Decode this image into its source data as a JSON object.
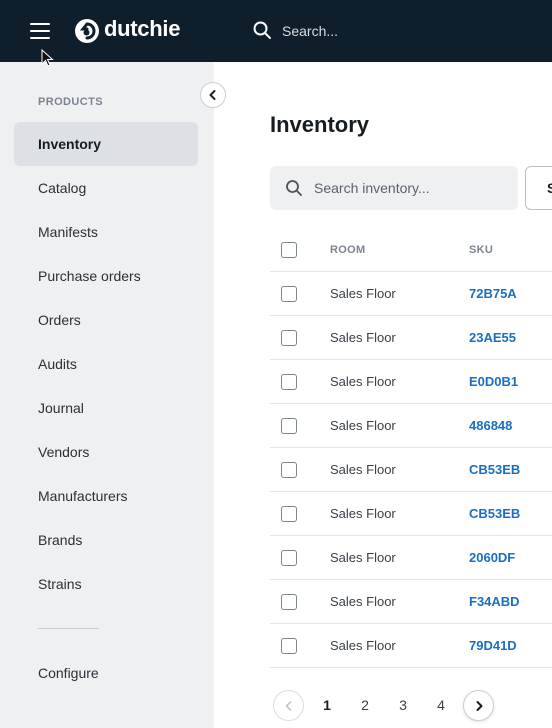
{
  "header": {
    "brand": "dutchie",
    "search_placeholder": "Search..."
  },
  "sidebar": {
    "section_label": "PRODUCTS",
    "items": [
      {
        "label": "Inventory",
        "active": true
      },
      {
        "label": "Catalog"
      },
      {
        "label": "Manifests"
      },
      {
        "label": "Purchase orders"
      },
      {
        "label": "Orders"
      },
      {
        "label": "Audits"
      },
      {
        "label": "Journal"
      },
      {
        "label": "Vendors"
      },
      {
        "label": "Manufacturers"
      },
      {
        "label": "Brands"
      },
      {
        "label": "Strains"
      }
    ],
    "footer_item": "Configure"
  },
  "main": {
    "title": "Inventory",
    "search_placeholder": "Search inventory...",
    "cut_button_label": "S",
    "table": {
      "columns": [
        "ROOM",
        "SKU"
      ],
      "rows": [
        {
          "room": "Sales Floor",
          "sku": "72B75A"
        },
        {
          "room": "Sales Floor",
          "sku": "23AE55"
        },
        {
          "room": "Sales Floor",
          "sku": "E0D0B1"
        },
        {
          "room": "Sales Floor",
          "sku": "486848"
        },
        {
          "room": "Sales Floor",
          "sku": "CB53EB"
        },
        {
          "room": "Sales Floor",
          "sku": "CB53EB"
        },
        {
          "room": "Sales Floor",
          "sku": "2060DF"
        },
        {
          "room": "Sales Floor",
          "sku": "F34ABD"
        },
        {
          "room": "Sales Floor",
          "sku": "79D41D"
        }
      ]
    },
    "pagination": {
      "pages": [
        "1",
        "2",
        "3",
        "4"
      ],
      "current": "1"
    }
  },
  "colors": {
    "topbar": "#0f1e2b",
    "sidebar": "#eef0f2",
    "active_item": "#dde1e5",
    "link": "#1a6fc2"
  }
}
